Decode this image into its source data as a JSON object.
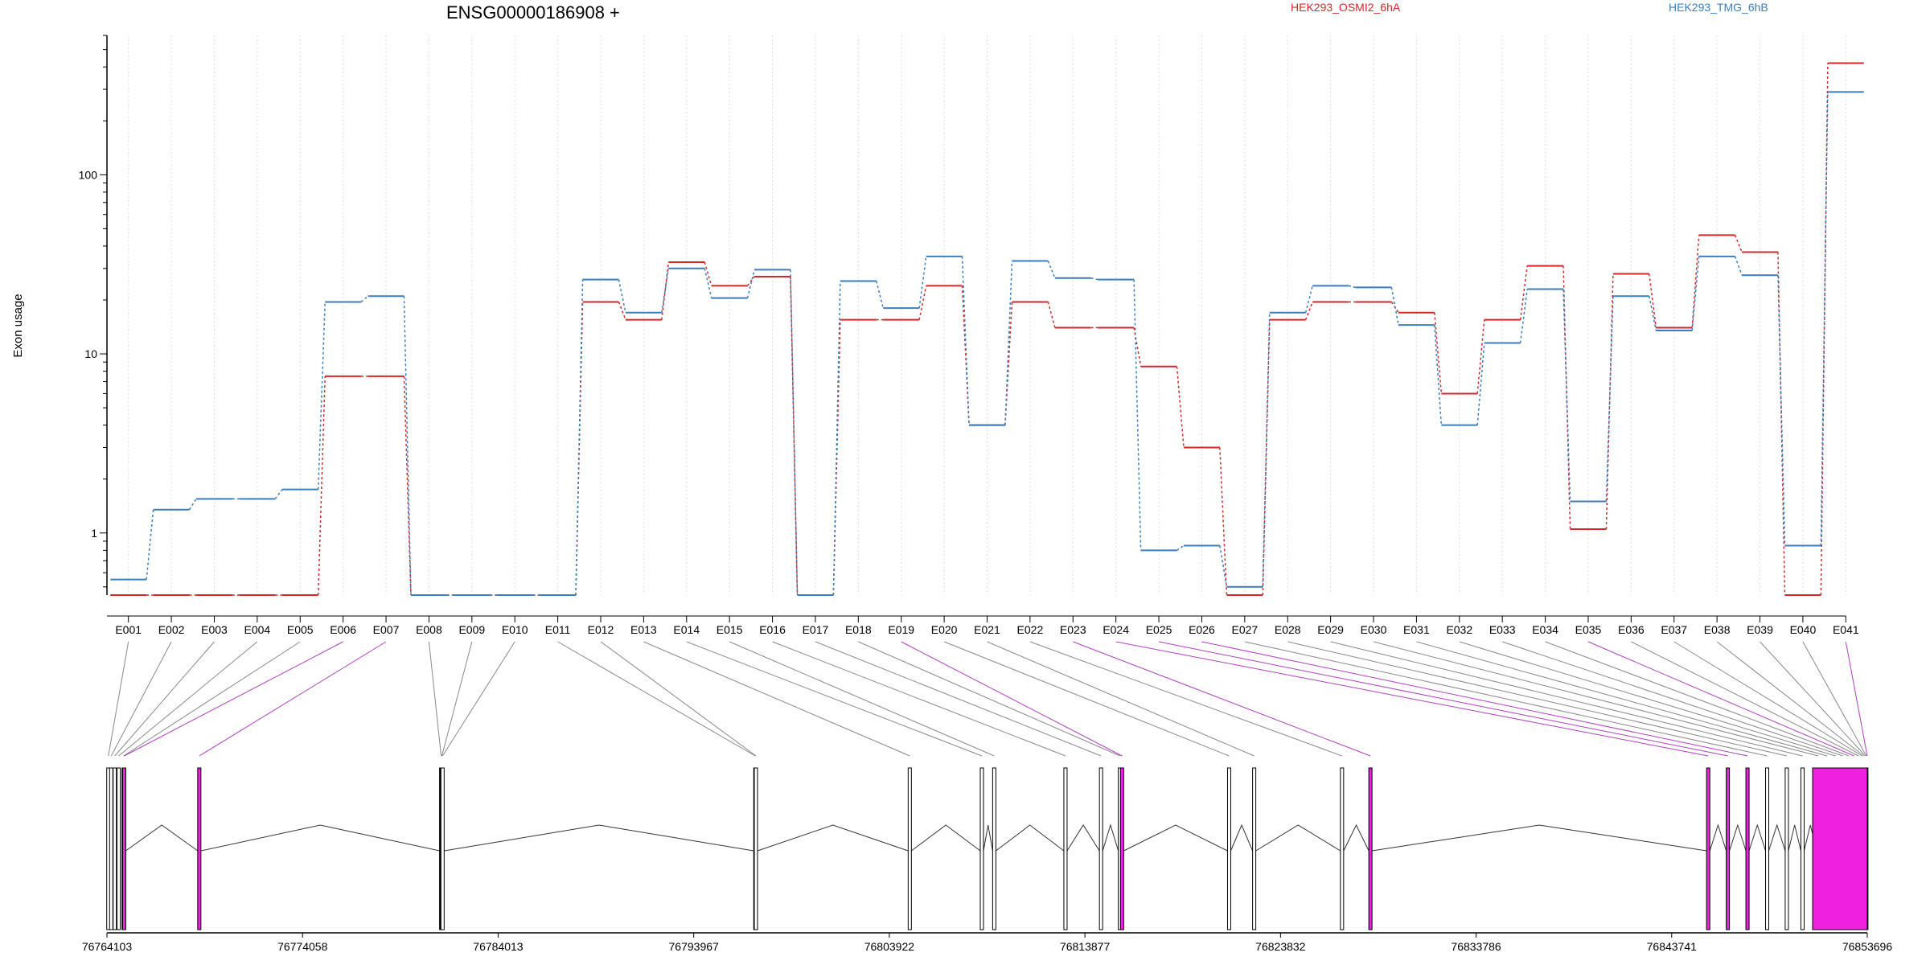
{
  "chart_data": {
    "type": "line",
    "title": "ENSG00000186908 +",
    "ylabel": "Exon usage",
    "yscale": "log",
    "ylim": [
      0.45,
      600
    ],
    "yticks": [
      1,
      10,
      100
    ],
    "ytick_labels": [
      "1",
      "10",
      "100"
    ],
    "grid": "vertical-dotted",
    "legend_position": "top-right",
    "categories": [
      "E001",
      "E002",
      "E003",
      "E004",
      "E005",
      "E006",
      "E007",
      "E008",
      "E009",
      "E010",
      "E011",
      "E012",
      "E013",
      "E014",
      "E015",
      "E016",
      "E017",
      "E018",
      "E019",
      "E020",
      "E021",
      "E022",
      "E023",
      "E024",
      "E025",
      "E026",
      "E027",
      "E028",
      "E029",
      "E030",
      "E031",
      "E032",
      "E033",
      "E034",
      "E035",
      "E036",
      "E037",
      "E038",
      "E039",
      "E040",
      "E041"
    ],
    "series": [
      {
        "name": "HEK293_OSMI2_6hA",
        "color": "#d62728",
        "values": [
          0.45,
          0.45,
          0.45,
          0.45,
          0.45,
          7.5,
          7.5,
          0.45,
          0.45,
          0.45,
          0.45,
          19.5,
          15.5,
          32.5,
          24,
          27,
          0.45,
          15.5,
          15.5,
          24,
          4,
          19.5,
          14,
          14,
          8.5,
          3,
          0.45,
          15.5,
          19.5,
          19.5,
          17,
          6,
          15.5,
          31,
          1.05,
          28,
          14,
          46,
          37,
          0.45,
          420
        ]
      },
      {
        "name": "HEK293_TMG_6hB",
        "color": "#3a7ebf",
        "values": [
          0.55,
          1.35,
          1.55,
          1.55,
          1.75,
          19.5,
          21,
          0.45,
          0.45,
          0.45,
          0.45,
          26,
          17,
          30,
          20.5,
          29.5,
          0.45,
          25.5,
          18,
          35,
          4,
          33,
          26.5,
          26,
          0.8,
          0.85,
          0.5,
          17,
          24,
          23.5,
          14.5,
          4,
          11.5,
          23,
          1.5,
          21,
          13.5,
          35,
          27.5,
          0.85,
          290
        ]
      }
    ],
    "gene_model": {
      "coord_ticks": [
        "76764103",
        "76774058",
        "76784013",
        "76793967",
        "76803922",
        "76813877",
        "76823832",
        "76833786",
        "76843741",
        "76853696"
      ],
      "coord_range": [
        76764103,
        76853696
      ],
      "exon_positions": [
        76764173,
        76764320,
        76764500,
        76764700,
        76764950,
        76764980,
        76768803,
        76781113,
        76781148,
        76781183,
        76797103,
        76797133,
        76804963,
        76808633,
        76809263,
        76812888,
        76814698,
        76815658,
        76815768,
        76821218,
        76822493,
        76826963,
        76828408,
        76845600,
        76846600,
        76847600,
        76848600,
        76849600,
        76850400,
        76851200,
        76851650,
        76852080,
        76852450,
        76852760,
        76853030,
        76853250,
        76853430,
        76853520,
        76853600,
        76853650,
        76853696
      ],
      "highlighted_exons": [
        "E006",
        "E007",
        "E019",
        "E023",
        "E024",
        "E025",
        "E026",
        "E035",
        "E041"
      ],
      "colors": {
        "exon_fill": "#ffffff",
        "exon_gray": "#cccccc",
        "highlight": "#f020e0",
        "link_gray": "#888888",
        "link_purple": "#b040c0"
      }
    }
  }
}
